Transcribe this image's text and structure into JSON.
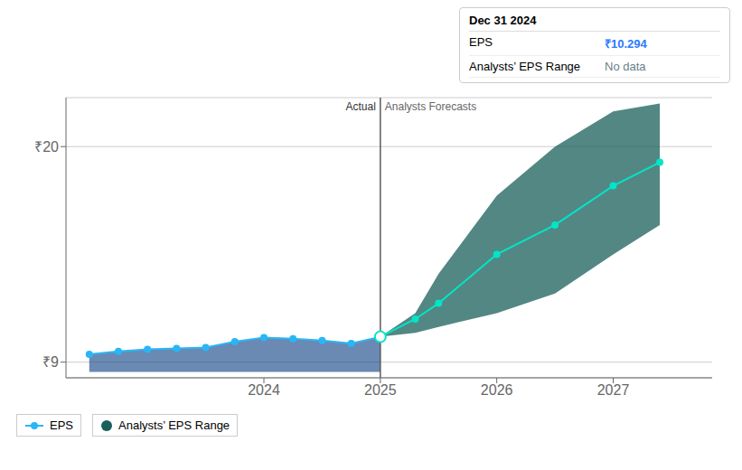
{
  "chart_data": {
    "type": "line",
    "xlim": [
      2022.3,
      2027.85
    ],
    "xticks": [
      2024,
      2025,
      2026,
      2027
    ],
    "ylim": [
      8.2,
      22.5
    ],
    "yticks": [
      {
        "value": 9,
        "label": "₹9"
      },
      {
        "value": 20,
        "label": "₹20"
      }
    ],
    "grid": true,
    "legend": "lower left",
    "series": [
      {
        "name": "EPS",
        "type": "area_line",
        "color": "#29b6f6",
        "fill_color": "#1a4a8a",
        "marker": "circle",
        "fill_base": 8.5,
        "x": [
          2022.5,
          2022.75,
          2023.0,
          2023.25,
          2023.5,
          2023.75,
          2024.0,
          2024.25,
          2024.5,
          2024.75,
          2025.0
        ],
        "values": [
          9.4,
          9.55,
          9.65,
          9.7,
          9.75,
          10.05,
          10.25,
          10.2,
          10.1,
          9.95,
          10.294
        ]
      },
      {
        "type": "line",
        "color": "#00e5c8",
        "marker": "circle",
        "x": [
          2025.0,
          2025.3,
          2025.5,
          2026.0,
          2026.5,
          2027.0,
          2027.4
        ],
        "values": [
          10.294,
          11.2,
          12.0,
          14.5,
          16.0,
          18.0,
          19.2
        ]
      },
      {
        "name": "Analysts’ EPS Range",
        "type": "range",
        "color": "#1a5f5a",
        "x": [
          2025.0,
          2025.3,
          2025.5,
          2026.0,
          2026.5,
          2027.0,
          2027.4
        ],
        "lower": [
          10.294,
          10.5,
          10.8,
          11.5,
          12.5,
          14.5,
          16.0
        ],
        "upper": [
          10.294,
          11.5,
          13.5,
          17.5,
          20.0,
          21.8,
          22.2
        ]
      }
    ],
    "divider": {
      "x": 2025,
      "labels": [
        "Actual",
        "Analysts Forecasts"
      ]
    },
    "highlight": {
      "x": 2025,
      "y": 10.294
    },
    "info_box": {
      "title": "Dec 31 2024",
      "rows": [
        {
          "label": "EPS",
          "value": "₹10.294",
          "color": "#2979ff"
        },
        {
          "label": "Analysts’ EPS Range",
          "value": "No data",
          "color": "#6a7f8a"
        }
      ]
    }
  }
}
